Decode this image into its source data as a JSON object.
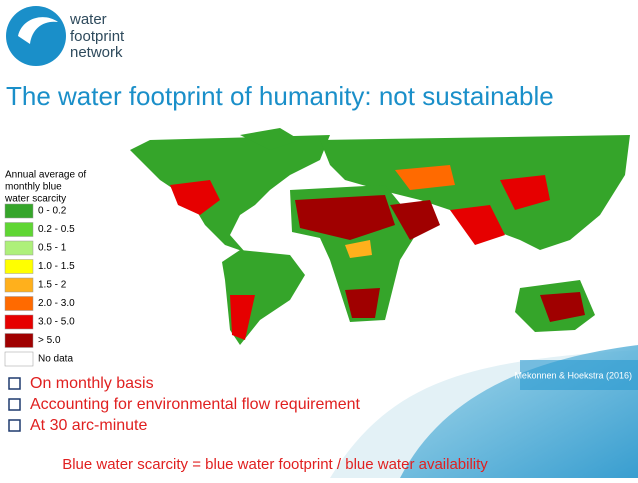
{
  "logo": {
    "lines": [
      "water",
      "footprint",
      "network"
    ]
  },
  "title": "The water footprint of humanity: not sustainable",
  "legend": {
    "title_lines": [
      "Annual average of",
      "monthly blue",
      "water scarcity"
    ],
    "items": [
      {
        "label": "0 - 0.2",
        "color": "#35a52a"
      },
      {
        "label": "0.2 - 0.5",
        "color": "#5fd633"
      },
      {
        "label": "0.5 - 1",
        "color": "#aef07a"
      },
      {
        "label": "1.0 - 1.5",
        "color": "#ffff00"
      },
      {
        "label": "1.5 - 2",
        "color": "#ffb01c"
      },
      {
        "label": "2.0 - 3.0",
        "color": "#ff6a00"
      },
      {
        "label": "3.0 - 5.0",
        "color": "#e60000"
      },
      {
        "label": "> 5.0",
        "color": "#a00000"
      },
      {
        "label": "No data",
        "color": "#ffffff"
      }
    ]
  },
  "citation": "Mekonnen & Hoekstra (2016)",
  "bullets": [
    "On monthly basis",
    "Accounting for environmental flow requirement",
    "At 30 arc-minute"
  ],
  "formula": "Blue water scarcity = blue water footprint / blue water availability"
}
